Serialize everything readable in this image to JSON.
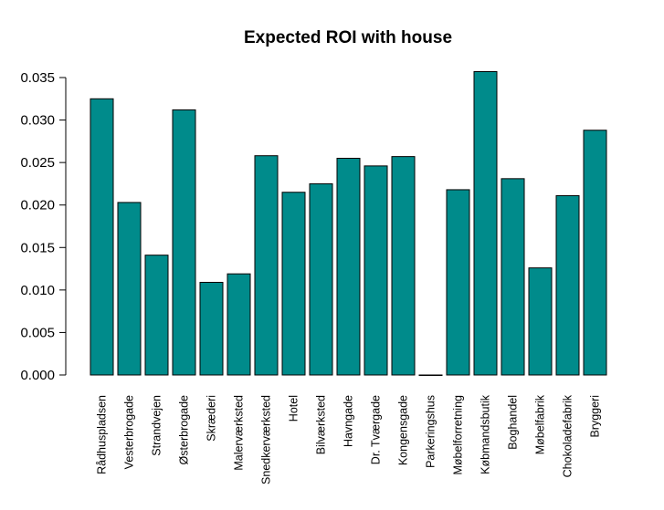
{
  "chart_data": {
    "type": "bar",
    "title": "Expected ROI with house",
    "xlabel": "",
    "ylabel": "",
    "ylim": [
      0,
      0.035
    ],
    "yticks": [
      "0.000",
      "0.005",
      "0.010",
      "0.015",
      "0.020",
      "0.025",
      "0.030",
      "0.035"
    ],
    "yticks_values": [
      0,
      0.005,
      0.01,
      0.015,
      0.02,
      0.025,
      0.03,
      0.035
    ],
    "grid": false,
    "bar_color": "#008B8B",
    "bar_border_color": "#000000",
    "categories": [
      "Rådhuspladsen",
      "Vesterbrogade",
      "Strandvejen",
      "Østerbrogade",
      "Skræderi",
      "Malerværksted",
      "Snedkerværksted",
      "Hotel",
      "Bilværksted",
      "Havngade",
      "Dr. Tværgade",
      "Kongensgade",
      "Parkeringshus",
      "Møbelforretning",
      "Købmandsbutik",
      "Boghandel",
      "Møbelfabrik",
      "Chokoladefabrik",
      "Bryggeri"
    ],
    "values": [
      0.0325,
      0.0203,
      0.0141,
      0.0312,
      0.0109,
      0.0119,
      0.0258,
      0.0215,
      0.0225,
      0.0255,
      0.0246,
      0.0257,
      0.0,
      0.0218,
      0.0357,
      0.0231,
      0.0126,
      0.0211,
      0.0288
    ]
  }
}
